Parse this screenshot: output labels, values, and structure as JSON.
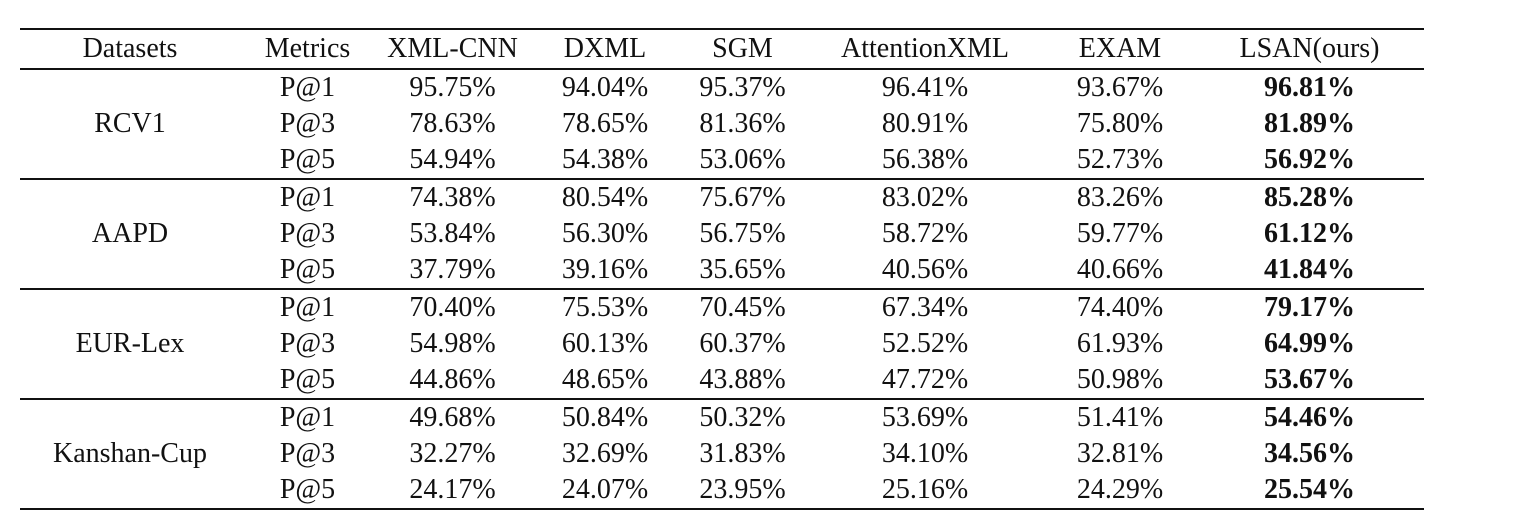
{
  "table": {
    "headers": [
      "Datasets",
      "Metrics",
      "XML-CNN",
      "DXML",
      "SGM",
      "AttentionXML",
      "EXAM",
      "LSAN(ours)"
    ],
    "groups": [
      {
        "dataset": "RCV1",
        "rows": [
          {
            "metric": "P@1",
            "values": [
              "95.75%",
              "94.04%",
              "95.37%",
              "96.41%",
              "93.67%",
              "96.81%"
            ]
          },
          {
            "metric": "P@3",
            "values": [
              "78.63%",
              "78.65%",
              "81.36%",
              "80.91%",
              "75.80%",
              "81.89%"
            ]
          },
          {
            "metric": "P@5",
            "values": [
              "54.94%",
              "54.38%",
              "53.06%",
              "56.38%",
              "52.73%",
              "56.92%"
            ]
          }
        ]
      },
      {
        "dataset": "AAPD",
        "rows": [
          {
            "metric": "P@1",
            "values": [
              "74.38%",
              "80.54%",
              "75.67%",
              "83.02%",
              "83.26%",
              "85.28%"
            ]
          },
          {
            "metric": "P@3",
            "values": [
              "53.84%",
              "56.30%",
              "56.75%",
              "58.72%",
              "59.77%",
              "61.12%"
            ]
          },
          {
            "metric": "P@5",
            "values": [
              "37.79%",
              "39.16%",
              "35.65%",
              "40.56%",
              "40.66%",
              "41.84%"
            ]
          }
        ]
      },
      {
        "dataset": "EUR-Lex",
        "rows": [
          {
            "metric": "P@1",
            "values": [
              "70.40%",
              "75.53%",
              "70.45%",
              "67.34%",
              "74.40%",
              "79.17%"
            ]
          },
          {
            "metric": "P@3",
            "values": [
              "54.98%",
              "60.13%",
              "60.37%",
              "52.52%",
              "61.93%",
              "64.99%"
            ]
          },
          {
            "metric": "P@5",
            "values": [
              "44.86%",
              "48.65%",
              "43.88%",
              "47.72%",
              "50.98%",
              "53.67%"
            ]
          }
        ]
      },
      {
        "dataset": "Kanshan-Cup",
        "rows": [
          {
            "metric": "P@1",
            "values": [
              "49.68%",
              "50.84%",
              "50.32%",
              "53.69%",
              "51.41%",
              "54.46%"
            ]
          },
          {
            "metric": "P@3",
            "values": [
              "32.27%",
              "32.69%",
              "31.83%",
              "34.10%",
              "32.81%",
              "34.56%"
            ]
          },
          {
            "metric": "P@5",
            "values": [
              "24.17%",
              "24.07%",
              "23.95%",
              "25.16%",
              "24.29%",
              "25.54%"
            ]
          }
        ]
      }
    ]
  }
}
